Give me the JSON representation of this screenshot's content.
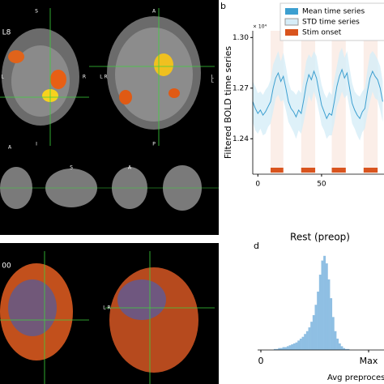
{
  "figure": {
    "panel_labels": [
      "b",
      "d"
    ],
    "brain_labels": [
      "L8",
      "S",
      "A",
      "L",
      "R",
      "L",
      "I",
      "P",
      "A",
      "S",
      "A",
      "L R",
      "L",
      "00",
      "L R"
    ]
  },
  "chart_data": [
    {
      "type": "line",
      "ylabel": "Filtered BOLD time series",
      "exponent_label": "× 10⁴",
      "x": [
        -4,
        -2,
        0,
        2,
        4,
        6,
        8,
        10,
        12,
        14,
        16,
        18,
        20,
        22,
        24,
        26,
        28,
        30,
        32,
        34,
        36,
        38,
        40,
        42,
        44,
        46,
        48,
        50,
        52,
        54,
        56,
        58,
        60,
        62,
        64,
        66,
        68,
        70,
        72,
        74,
        76,
        78,
        80,
        82,
        84,
        86,
        88,
        90,
        92,
        94,
        96,
        98
      ],
      "series": [
        {
          "name": "Mean time series",
          "color": "#3c9fd0",
          "values": [
            1.262,
            1.258,
            1.255,
            1.257,
            1.254,
            1.256,
            1.259,
            1.262,
            1.27,
            1.276,
            1.279,
            1.274,
            1.277,
            1.27,
            1.262,
            1.258,
            1.256,
            1.253,
            1.257,
            1.255,
            1.263,
            1.272,
            1.278,
            1.275,
            1.28,
            1.276,
            1.268,
            1.26,
            1.256,
            1.252,
            1.255,
            1.254,
            1.262,
            1.271,
            1.277,
            1.281,
            1.276,
            1.279,
            1.27,
            1.261,
            1.257,
            1.254,
            1.252,
            1.256,
            1.258,
            1.268,
            1.276,
            1.28,
            1.277,
            1.275,
            1.27,
            1.262
          ]
        },
        {
          "name": "STD time series",
          "color": "#d6edf8",
          "values": [
            0.012,
            0.013,
            0.012,
            0.011,
            0.012,
            0.013,
            0.012,
            0.013,
            0.014,
            0.012,
            0.013,
            0.012,
            0.014,
            0.013,
            0.012,
            0.011,
            0.012,
            0.013,
            0.012,
            0.012,
            0.013,
            0.014,
            0.012,
            0.013,
            0.012,
            0.013,
            0.012,
            0.012,
            0.011,
            0.012,
            0.013,
            0.012,
            0.013,
            0.012,
            0.014,
            0.013,
            0.012,
            0.013,
            0.012,
            0.012,
            0.011,
            0.012,
            0.013,
            0.012,
            0.012,
            0.013,
            0.014,
            0.012,
            0.013,
            0.012,
            0.013,
            0.012
          ]
        },
        {
          "name": "Stim onset",
          "color": "#d9541e",
          "blocks": [
            [
              10,
              20
            ],
            [
              34,
              45
            ],
            [
              58,
              69
            ],
            [
              83,
              94
            ]
          ]
        }
      ],
      "xlim": [
        -4,
        99
      ],
      "xticks": [
        0,
        50
      ],
      "ylim": [
        1.219,
        1.304
      ],
      "yticks": [
        1.24,
        1.27,
        {
          "value": 1.3,
          "label": "1.30"
        }
      ]
    },
    {
      "type": "histogram",
      "title": "Rest (preop)",
      "xlabel": "Avg preproces",
      "color": "#8fbfe3",
      "bins": [
        0.1,
        0.12,
        0.14,
        0.16,
        0.18,
        0.2,
        0.22,
        0.24,
        0.26,
        0.28,
        0.3,
        0.32,
        0.34,
        0.36,
        0.38,
        0.4,
        0.42,
        0.44,
        0.46,
        0.48,
        0.5,
        0.52,
        0.54,
        0.56,
        0.58,
        0.6,
        0.62,
        0.64,
        0.66,
        0.68,
        0.7,
        0.72,
        0.74,
        0.76,
        0.78,
        0.8,
        0.82,
        0.84,
        0.86,
        0.88,
        0.9
      ],
      "counts": [
        0,
        1,
        1,
        2,
        2,
        3,
        3,
        4,
        5,
        6,
        7,
        8,
        10,
        12,
        14,
        17,
        20,
        24,
        30,
        37,
        48,
        62,
        80,
        95,
        100,
        92,
        75,
        55,
        35,
        20,
        12,
        7,
        4,
        2,
        1,
        1,
        0,
        0,
        0,
        0
      ],
      "xlim": [
        0,
        1
      ],
      "xticks": [
        0,
        {
          "value": 1,
          "label": "Max"
        }
      ],
      "ylim": [
        0,
        105
      ]
    }
  ]
}
